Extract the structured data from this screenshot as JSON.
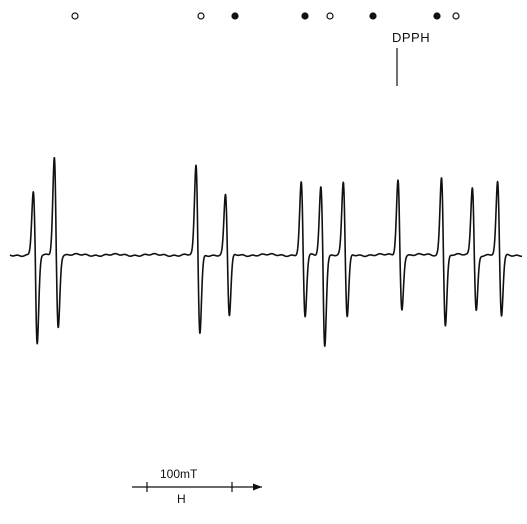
{
  "chart_data": {
    "type": "line",
    "title": "",
    "xlabel": "H",
    "ylabel": "",
    "grid": false,
    "scale_bar": {
      "label": "100mT",
      "length_mT": 100
    },
    "reference": {
      "label": "DPPH"
    },
    "markers": [
      {
        "shape": "open"
      },
      {
        "shape": "open"
      },
      {
        "shape": "filled"
      },
      {
        "shape": "filled"
      },
      {
        "shape": "open"
      },
      {
        "shape": "filled"
      },
      {
        "shape": "filled"
      },
      {
        "shape": "open"
      }
    ],
    "signals": [
      {
        "h": 18,
        "amp_up": 63,
        "amp_down": 90
      },
      {
        "h": 33,
        "amp_up": 98,
        "amp_down": 72
      },
      {
        "h": 134,
        "amp_up": 89,
        "amp_down": 78
      },
      {
        "h": 155,
        "amp_up": 60,
        "amp_down": 61
      },
      {
        "h": 209,
        "amp_up": 72,
        "amp_down": 62
      },
      {
        "h": 223,
        "amp_up": 68,
        "amp_down": 90
      },
      {
        "h": 239,
        "amp_up": 72,
        "amp_down": 62
      },
      {
        "h": 278,
        "amp_up": 75,
        "amp_down": 54
      },
      {
        "h": 309,
        "amp_up": 78,
        "amp_down": 70
      },
      {
        "h": 331,
        "amp_up": 68,
        "amp_down": 55
      },
      {
        "h": 349,
        "amp_up": 72,
        "amp_down": 61
      }
    ]
  }
}
